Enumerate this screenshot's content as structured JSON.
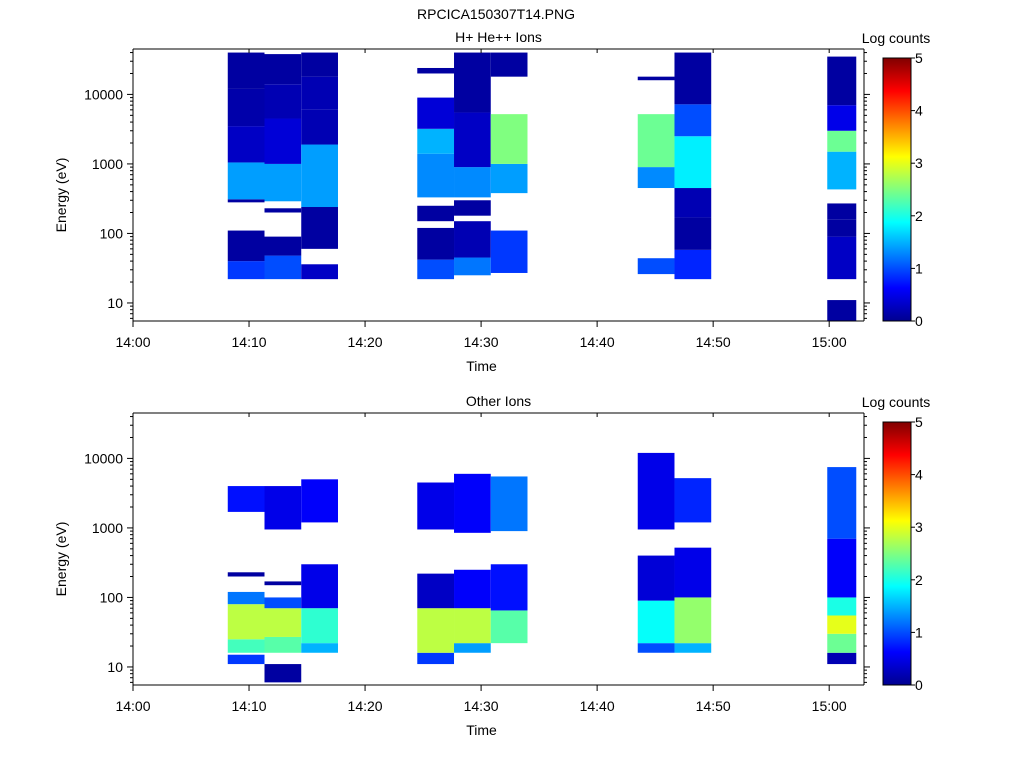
{
  "figure": {
    "title": "RPCICA150307T14.PNG"
  },
  "colors": {
    "colormap": [
      "#00008f",
      "#0000ff",
      "#0080ff",
      "#00ffff",
      "#80ff80",
      "#ffff00",
      "#ff8000",
      "#ff0000",
      "#800000"
    ],
    "axis": "#000000"
  },
  "chart_data": [
    {
      "type": "heatmap",
      "title": "H+ He++ Ions",
      "xlabel": "Time",
      "ylabel": "Energy (eV)",
      "x_scale": "time",
      "y_scale": "log",
      "xlim": [
        "14:00",
        "15:03"
      ],
      "ylim": [
        5.5,
        45000
      ],
      "x_ticks": [
        "14:00",
        "14:10",
        "14:20",
        "14:30",
        "14:40",
        "14:50",
        "15:00"
      ],
      "y_ticks": [
        "10",
        "100",
        "1000",
        "10000"
      ],
      "colorbar": {
        "label": "Log counts",
        "min": 0,
        "max": 5,
        "ticks": [
          "0",
          "1",
          "2",
          "3",
          "4",
          "5"
        ]
      },
      "columns": [
        {
          "t0": "14:08:10",
          "t1": "14:11:20",
          "cells": [
            [
              22,
              40,
              0.9
            ],
            [
              40,
              110,
              0.1
            ],
            [
              280,
              310,
              0.1
            ],
            [
              310,
              1050,
              1.4
            ],
            [
              1050,
              3500,
              0.3
            ],
            [
              3500,
              12000,
              0.15
            ],
            [
              12000,
              40000,
              0.1
            ]
          ]
        },
        {
          "t0": "14:11:20",
          "t1": "14:14:30",
          "cells": [
            [
              22,
              48,
              1.0
            ],
            [
              48,
              90,
              0.1
            ],
            [
              200,
              230,
              0.1
            ],
            [
              290,
              1000,
              1.4
            ],
            [
              1000,
              4500,
              0.4
            ],
            [
              4500,
              14000,
              0.2
            ],
            [
              14000,
              38000,
              0.1
            ]
          ]
        },
        {
          "t0": "14:14:30",
          "t1": "14:17:40",
          "cells": [
            [
              22,
              36,
              0.3
            ],
            [
              60,
              240,
              0.1
            ],
            [
              240,
              1900,
              1.4
            ],
            [
              1900,
              6000,
              0.2
            ],
            [
              6000,
              18000,
              0.2
            ],
            [
              18000,
              40000,
              0.1
            ]
          ]
        },
        {
          "t0": "14:24:30",
          "t1": "14:27:40",
          "cells": [
            [
              22,
              42,
              1.0
            ],
            [
              42,
              120,
              0.1
            ],
            [
              150,
              250,
              0.1
            ],
            [
              330,
              1400,
              1.3
            ],
            [
              1400,
              3200,
              1.5
            ],
            [
              3200,
              9000,
              0.4
            ],
            [
              20000,
              24000,
              0.1
            ]
          ]
        },
        {
          "t0": "14:27:40",
          "t1": "14:30:50",
          "cells": [
            [
              25,
              45,
              1.2
            ],
            [
              45,
              150,
              0.2
            ],
            [
              180,
              300,
              0.1
            ],
            [
              330,
              900,
              1.3
            ],
            [
              900,
              5500,
              0.3
            ],
            [
              5500,
              40000,
              0.1
            ]
          ]
        },
        {
          "t0": "14:30:50",
          "t1": "14:34:00",
          "cells": [
            [
              27,
              110,
              0.9
            ],
            [
              380,
              1000,
              1.4
            ],
            [
              1000,
              5200,
              2.5
            ],
            [
              18000,
              40000,
              0.1
            ]
          ]
        },
        {
          "t0": "14:43:30",
          "t1": "14:46:40",
          "cells": [
            [
              26,
              44,
              1.0
            ],
            [
              450,
              900,
              1.3
            ],
            [
              900,
              5200,
              2.4
            ],
            [
              16000,
              18000,
              0.1
            ]
          ]
        },
        {
          "t0": "14:46:40",
          "t1": "14:49:50",
          "cells": [
            [
              22,
              58,
              0.8
            ],
            [
              58,
              170,
              0.1
            ],
            [
              170,
              450,
              0.2
            ],
            [
              450,
              2500,
              1.8
            ],
            [
              2500,
              7200,
              1.0
            ],
            [
              7200,
              40000,
              0.1
            ]
          ]
        },
        {
          "t0": "14:59:50",
          "t1": "15:02:20",
          "cells": [
            [
              5.5,
              11,
              0.1
            ],
            [
              22,
              90,
              0.3
            ],
            [
              90,
              160,
              0.1
            ],
            [
              160,
              270,
              0.1
            ],
            [
              430,
              1500,
              1.5
            ],
            [
              1500,
              3000,
              2.4
            ],
            [
              3000,
              7000,
              0.5
            ],
            [
              7000,
              35000,
              0.1
            ]
          ]
        }
      ]
    },
    {
      "type": "heatmap",
      "title": "Other Ions",
      "xlabel": "Time",
      "ylabel": "Energy (eV)",
      "x_scale": "time",
      "y_scale": "log",
      "xlim": [
        "14:00",
        "15:03"
      ],
      "ylim": [
        5.5,
        45000
      ],
      "x_ticks": [
        "14:00",
        "14:10",
        "14:20",
        "14:30",
        "14:40",
        "14:50",
        "15:00"
      ],
      "y_ticks": [
        "10",
        "100",
        "1000",
        "10000"
      ],
      "colorbar": {
        "label": "Log counts",
        "min": 0,
        "max": 5,
        "ticks": [
          "0",
          "1",
          "2",
          "3",
          "4",
          "5"
        ]
      },
      "columns": [
        {
          "t0": "14:08:10",
          "t1": "14:11:20",
          "cells": [
            [
              11,
              15,
              0.9
            ],
            [
              16,
              25,
              2.2
            ],
            [
              25,
              80,
              2.8
            ],
            [
              80,
              120,
              1.2
            ],
            [
              200,
              230,
              0.1
            ],
            [
              1700,
              4000,
              0.7
            ]
          ]
        },
        {
          "t0": "14:11:20",
          "t1": "14:14:30",
          "cells": [
            [
              6,
              11,
              0.1
            ],
            [
              16,
              27,
              2.3
            ],
            [
              27,
              70,
              2.8
            ],
            [
              70,
              100,
              1.0
            ],
            [
              150,
              170,
              0.1
            ],
            [
              950,
              4000,
              0.5
            ]
          ]
        },
        {
          "t0": "14:14:30",
          "t1": "14:17:40",
          "cells": [
            [
              16,
              22,
              1.5
            ],
            [
              22,
              70,
              2.1
            ],
            [
              70,
              300,
              0.5
            ],
            [
              1200,
              5000,
              0.6
            ]
          ]
        },
        {
          "t0": "14:24:30",
          "t1": "14:27:40",
          "cells": [
            [
              11,
              16,
              0.9
            ],
            [
              16,
              70,
              2.8
            ],
            [
              70,
              220,
              0.3
            ],
            [
              950,
              4500,
              0.5
            ]
          ]
        },
        {
          "t0": "14:27:40",
          "t1": "14:30:50",
          "cells": [
            [
              16,
              22,
              1.4
            ],
            [
              22,
              70,
              2.8
            ],
            [
              70,
              250,
              0.6
            ],
            [
              850,
              6000,
              0.6
            ]
          ]
        },
        {
          "t0": "14:30:50",
          "t1": "14:34:00",
          "cells": [
            [
              22,
              65,
              2.3
            ],
            [
              65,
              300,
              0.7
            ],
            [
              900,
              5500,
              1.2
            ]
          ]
        },
        {
          "t0": "14:43:30",
          "t1": "14:46:40",
          "cells": [
            [
              16,
              22,
              1.0
            ],
            [
              22,
              90,
              1.9
            ],
            [
              90,
              400,
              0.4
            ],
            [
              950,
              12000,
              0.5
            ]
          ]
        },
        {
          "t0": "14:46:40",
          "t1": "14:49:50",
          "cells": [
            [
              16,
              22,
              1.5
            ],
            [
              22,
              100,
              2.6
            ],
            [
              100,
              520,
              0.5
            ],
            [
              1200,
              5200,
              0.8
            ]
          ]
        },
        {
          "t0": "14:59:50",
          "t1": "15:02:20",
          "cells": [
            [
              11,
              16,
              0.2
            ],
            [
              16,
              30,
              2.4
            ],
            [
              30,
              55,
              3.0
            ],
            [
              55,
              100,
              2.0
            ],
            [
              100,
              700,
              0.6
            ],
            [
              700,
              7500,
              1.0
            ]
          ]
        }
      ]
    }
  ]
}
